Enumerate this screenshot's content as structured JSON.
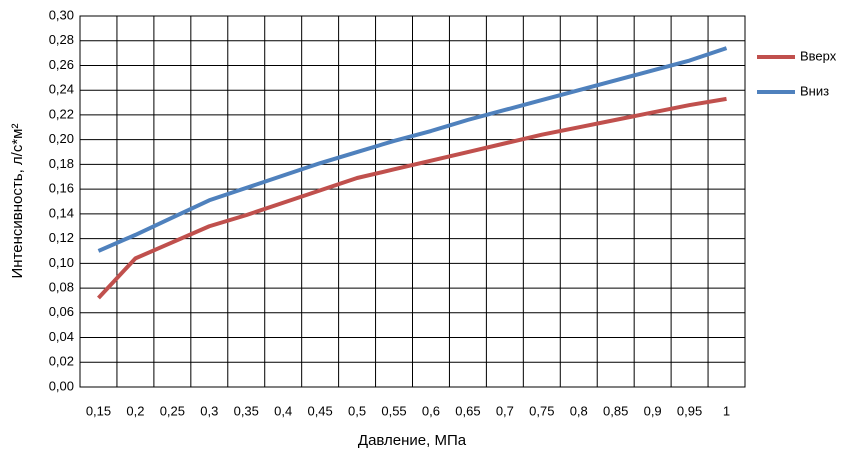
{
  "chart_data": {
    "type": "line",
    "x_label": "Давление, МПа",
    "y_label": "Интенсивность, л/с*м²",
    "categories": [
      "0,15",
      "0,2",
      "0,25",
      "0,3",
      "0,35",
      "0,4",
      "0,45",
      "0,5",
      "0,55",
      "0,6",
      "0,65",
      "0,7",
      "0,75",
      "0,8",
      "0,85",
      "0,9",
      "0,95",
      "1"
    ],
    "series": [
      {
        "name": "Вверх",
        "color": "#c0504d",
        "values": [
          0.072,
          0.104,
          0.117,
          0.13,
          0.139,
          0.149,
          0.159,
          0.169,
          0.176,
          0.183,
          0.19,
          0.197,
          0.204,
          0.21,
          0.216,
          0.222,
          0.228,
          0.233
        ]
      },
      {
        "name": "Вниз",
        "color": "#4f81bd",
        "values": [
          0.11,
          0.123,
          0.137,
          0.151,
          0.161,
          0.171,
          0.181,
          0.19,
          0.199,
          0.207,
          0.216,
          0.224,
          0.232,
          0.24,
          0.248,
          0.256,
          0.264,
          0.274
        ]
      }
    ],
    "ylim": [
      0,
      0.3
    ],
    "yticks": [
      {
        "value": 0,
        "label": "0,00"
      },
      {
        "value": 0.02,
        "label": "0,02"
      },
      {
        "value": 0.04,
        "label": "0,04"
      },
      {
        "value": 0.06,
        "label": "0,06"
      },
      {
        "value": 0.08,
        "label": "0,08"
      },
      {
        "value": 0.1,
        "label": "0,10"
      },
      {
        "value": 0.12,
        "label": "0,12"
      },
      {
        "value": 0.14,
        "label": "0,14"
      },
      {
        "value": 0.16,
        "label": "0,16"
      },
      {
        "value": 0.18,
        "label": "0,18"
      },
      {
        "value": 0.2,
        "label": "0,20"
      },
      {
        "value": 0.22,
        "label": "0,22"
      },
      {
        "value": 0.24,
        "label": "0,24"
      },
      {
        "value": 0.26,
        "label": "0,26"
      },
      {
        "value": 0.28,
        "label": "0,28"
      },
      {
        "value": 0.3,
        "label": "0,30"
      }
    ],
    "grid": true,
    "legend": "right"
  }
}
